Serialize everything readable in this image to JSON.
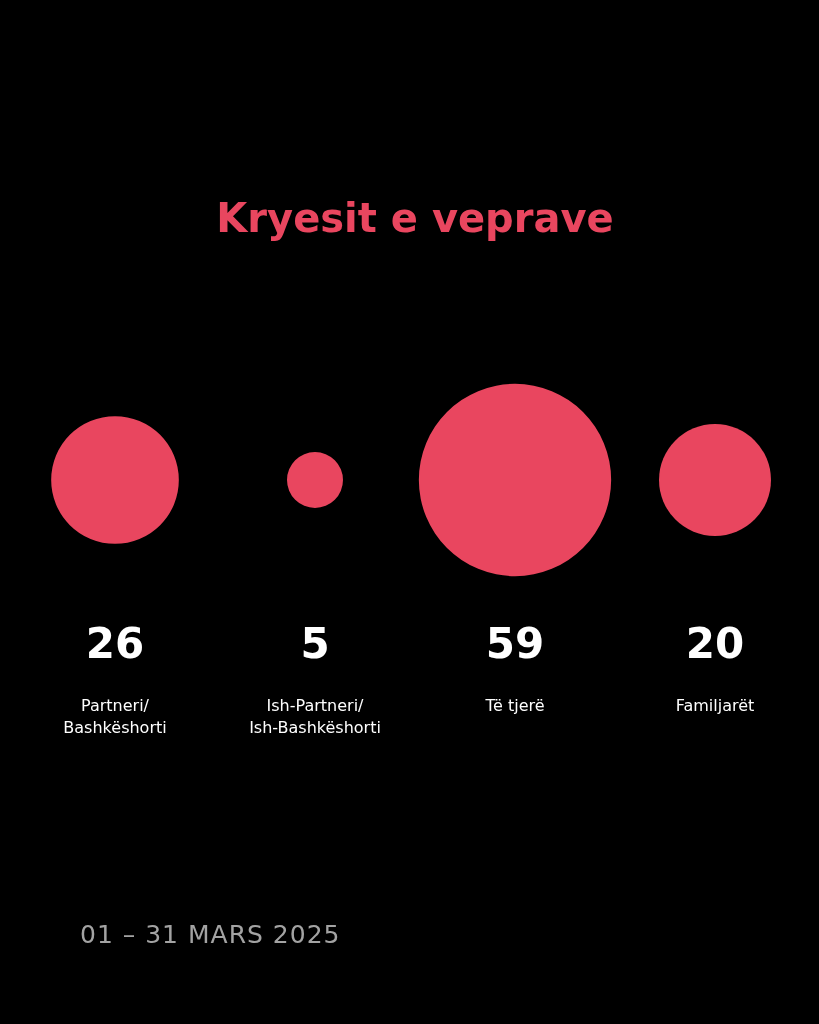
{
  "chart_data": {
    "type": "other",
    "title": "Kryesit e veprave",
    "categories": [
      "Partneri/ Bashkëshorti",
      "Ish-Partneri/ Ish-Bashkëshorti",
      "Të tjerë",
      "Familjarët"
    ],
    "values": [
      26,
      5,
      59,
      20
    ],
    "color": "#e9465f",
    "data_labels": true,
    "annotations": [
      "01 – 31 MARS 2025"
    ]
  }
}
